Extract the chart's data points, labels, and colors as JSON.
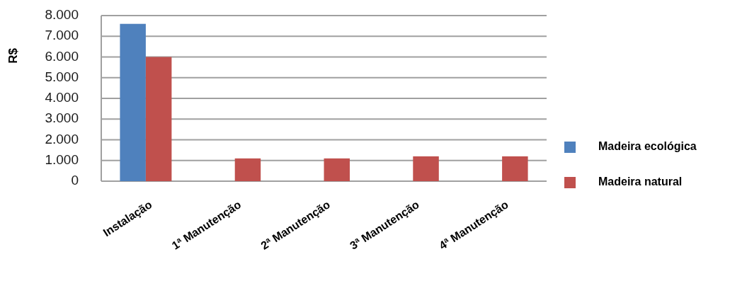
{
  "chart_data": {
    "type": "bar",
    "ylabel": "R$",
    "categories": [
      "Instalação",
      "1ª Manutenção",
      "2ª Manutenção",
      "3ª Manutenção",
      "4ª Manutenção"
    ],
    "series": [
      {
        "name": "Madeira ecológica",
        "color": "#4f81bd",
        "values": [
          7600,
          null,
          null,
          null,
          null
        ]
      },
      {
        "name": "Madeira natural",
        "color": "#c0504d",
        "values": [
          6000,
          1100,
          1100,
          1200,
          1200
        ]
      }
    ],
    "ylim": [
      0,
      8000
    ],
    "yticks": [
      {
        "value": 0,
        "label": "0"
      },
      {
        "value": 1000,
        "label": "1.000"
      },
      {
        "value": 2000,
        "label": "2.000"
      },
      {
        "value": 3000,
        "label": "3.000"
      },
      {
        "value": 4000,
        "label": "4.000"
      },
      {
        "value": 5000,
        "label": "5.000"
      },
      {
        "value": 6000,
        "label": "6.000"
      },
      {
        "value": 7000,
        "label": "7.000"
      },
      {
        "value": 8000,
        "label": "8.000"
      }
    ],
    "grid": "y",
    "legend": "right"
  }
}
